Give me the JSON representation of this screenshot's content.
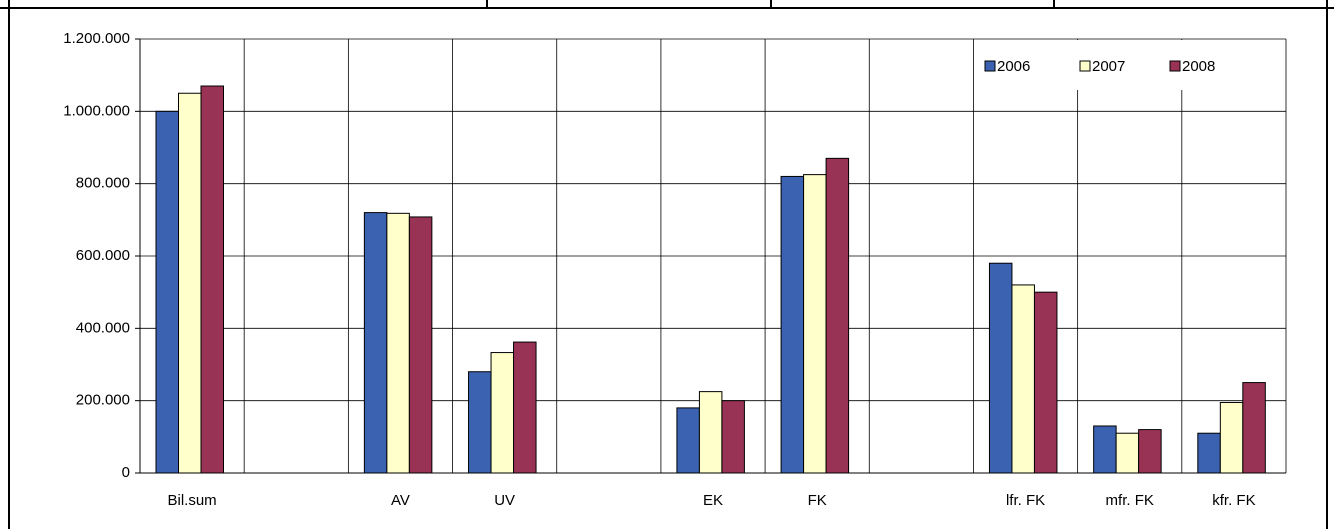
{
  "chart_data": {
    "type": "bar",
    "categories": [
      "Bil.sum",
      null,
      "AV",
      "UV",
      null,
      "EK",
      "FK",
      null,
      "lfr. FK",
      "mfr. FK",
      "kfr. FK"
    ],
    "series": [
      {
        "name": "2006",
        "color": "#3a62b0",
        "values": [
          1000000,
          null,
          720000,
          280000,
          null,
          180000,
          820000,
          null,
          580000,
          130000,
          110000
        ]
      },
      {
        "name": "2007",
        "color": "#ffffcc",
        "values": [
          1050000,
          null,
          718000,
          333000,
          null,
          225000,
          825000,
          null,
          520000,
          110000,
          195000
        ]
      },
      {
        "name": "2008",
        "color": "#993355",
        "values": [
          1070000,
          null,
          708000,
          362000,
          null,
          200000,
          870000,
          null,
          500000,
          120000,
          250000
        ]
      }
    ],
    "ylim": [
      0,
      1200000
    ],
    "yticks": [
      {
        "value": 0,
        "label": "0"
      },
      {
        "value": 200000,
        "label": "200.000"
      },
      {
        "value": 400000,
        "label": "400.000"
      },
      {
        "value": 600000,
        "label": "600.000"
      },
      {
        "value": 800000,
        "label": "800.000"
      },
      {
        "value": 1000000,
        "label": "1.000.000"
      },
      {
        "value": 1200000,
        "label": "1.200.000"
      }
    ],
    "grid": true,
    "legend": "top-right"
  }
}
